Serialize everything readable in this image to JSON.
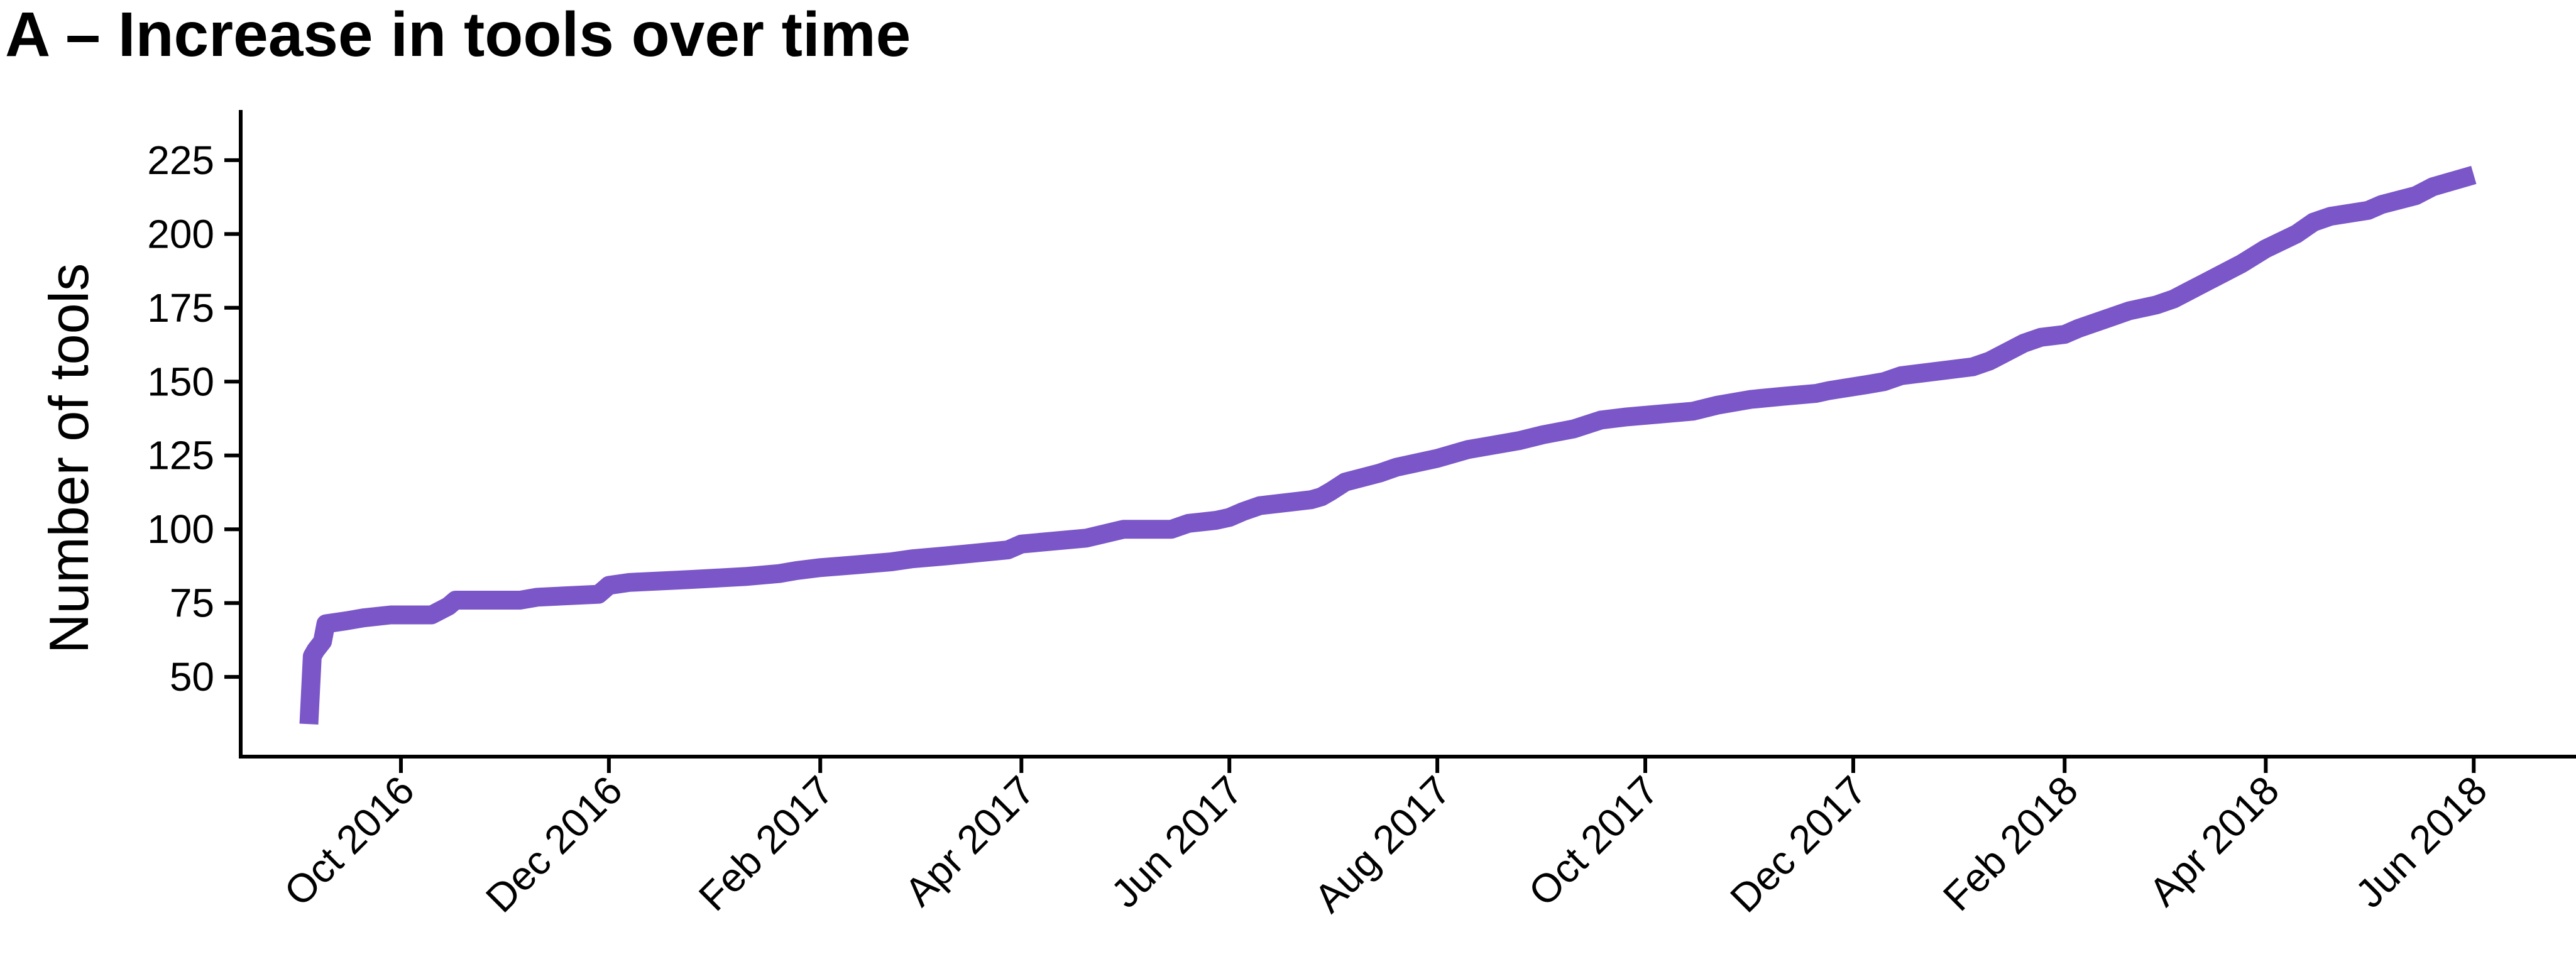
{
  "chart_data": {
    "type": "line",
    "title": "A – Increase in tools over time",
    "xlabel": "",
    "ylabel": "Number of tools",
    "xlim": [
      "2016-08-15",
      "2018-07-01"
    ],
    "ylim": [
      23,
      242
    ],
    "x_tick_labels": [
      "Oct 2016",
      "Dec 2016",
      "Feb 2017",
      "Apr 2017",
      "Jun 2017",
      "Aug 2017",
      "Oct 2017",
      "Dec 2017",
      "Feb 2018",
      "Apr 2018",
      "Jun 2018"
    ],
    "x_tick_dates": [
      "2016-10-01",
      "2016-12-01",
      "2017-02-01",
      "2017-04-01",
      "2017-06-01",
      "2017-08-01",
      "2017-10-01",
      "2017-12-01",
      "2018-02-01",
      "2018-04-01",
      "2018-06-01"
    ],
    "y_ticks": [
      50,
      75,
      100,
      125,
      150,
      175,
      200,
      225
    ],
    "grid": false,
    "series": [
      {
        "color": "#7b56c8",
        "x": [
          "2016-09-04",
          "2016-09-05",
          "2016-09-06",
          "2016-09-08",
          "2016-09-09",
          "2016-09-15",
          "2016-09-20",
          "2016-09-28",
          "2016-10-10",
          "2016-10-15",
          "2016-10-17",
          "2016-11-05",
          "2016-11-10",
          "2016-11-28",
          "2016-12-01",
          "2016-12-07",
          "2016-12-25",
          "2017-01-10",
          "2017-01-20",
          "2017-01-25",
          "2017-02-01",
          "2017-02-12",
          "2017-02-22",
          "2017-02-28",
          "2017-03-10",
          "2017-03-28",
          "2017-04-01",
          "2017-04-20",
          "2017-05-01",
          "2017-05-15",
          "2017-05-20",
          "2017-05-28",
          "2017-06-01",
          "2017-06-05",
          "2017-06-10",
          "2017-06-25",
          "2017-06-28",
          "2017-07-01",
          "2017-07-05",
          "2017-07-15",
          "2017-07-20",
          "2017-08-01",
          "2017-08-10",
          "2017-08-15",
          "2017-08-25",
          "2017-09-01",
          "2017-09-10",
          "2017-09-18",
          "2017-09-25",
          "2017-10-05",
          "2017-10-15",
          "2017-10-22",
          "2017-11-01",
          "2017-11-10",
          "2017-11-20",
          "2017-11-24",
          "2017-12-05",
          "2017-12-10",
          "2017-12-15",
          "2018-01-05",
          "2018-01-10",
          "2018-01-15",
          "2018-01-20",
          "2018-01-25",
          "2018-02-01",
          "2018-02-05",
          "2018-02-10",
          "2018-02-15",
          "2018-02-20",
          "2018-02-28",
          "2018-03-05",
          "2018-03-10",
          "2018-03-15",
          "2018-03-20",
          "2018-03-25",
          "2018-04-01",
          "2018-04-10",
          "2018-04-15",
          "2018-04-20",
          "2018-05-01",
          "2018-05-05",
          "2018-05-15",
          "2018-05-20",
          "2018-06-01"
        ],
        "values": [
          34,
          57,
          59,
          62,
          68,
          69,
          70,
          71,
          71,
          74,
          76,
          76,
          77,
          78,
          81,
          82,
          83,
          84,
          85,
          86,
          87,
          88,
          89,
          90,
          91,
          93,
          95,
          97,
          100,
          100,
          102,
          103,
          104,
          106,
          108,
          110,
          111,
          113,
          116,
          119,
          121,
          124,
          127,
          128,
          130,
          132,
          134,
          137,
          138,
          139,
          140,
          142,
          144,
          145,
          146,
          147,
          149,
          150,
          152,
          155,
          157,
          160,
          163,
          165,
          166,
          168,
          170,
          172,
          174,
          176,
          178,
          181,
          184,
          187,
          190,
          195,
          200,
          204,
          206,
          208,
          210,
          213,
          216,
          220
        ]
      }
    ]
  }
}
